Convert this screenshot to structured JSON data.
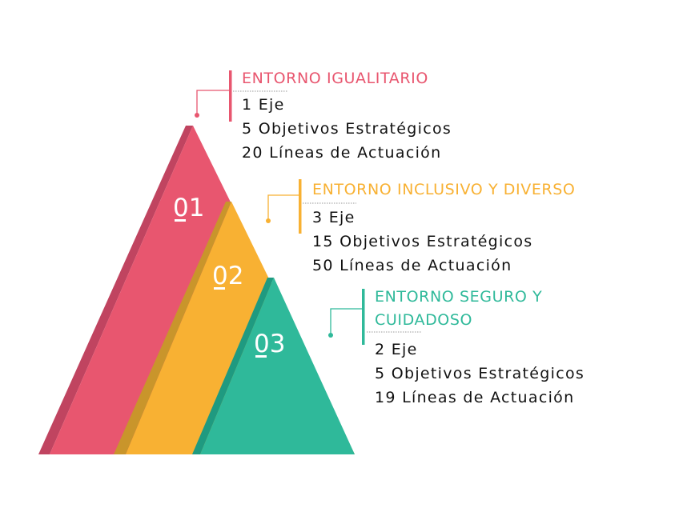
{
  "colors": {
    "pink": "#e8566f",
    "orange": "#f8b133",
    "teal": "#2fb99a"
  },
  "sections": [
    {
      "number": "01",
      "title_lines": [
        "ENTORNO IGUALITARIO"
      ],
      "lines": [
        "1 Eje",
        "5 Objetivos Estratégicos",
        "20 Líneas de Actuación"
      ]
    },
    {
      "number": "02",
      "title_lines": [
        "ENTORNO INCLUSIVO Y DIVERSO"
      ],
      "lines": [
        "3 Eje",
        "15 Objetivos Estratégicos",
        "50 Líneas de Actuación"
      ]
    },
    {
      "number": "03",
      "title_lines": [
        "ENTORNO SEGURO Y",
        "CUIDADOSO"
      ],
      "lines": [
        "2 Eje",
        "5 Objetivos Estratégicos",
        "19 Líneas de Actuación"
      ]
    }
  ]
}
